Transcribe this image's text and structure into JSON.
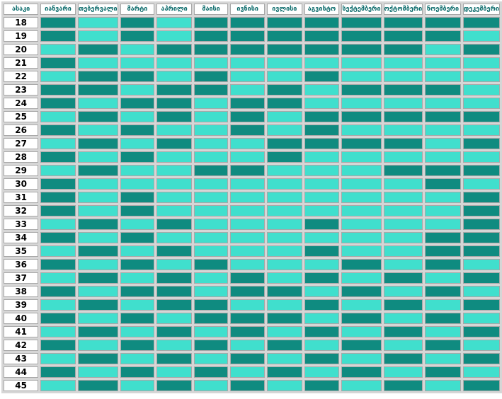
{
  "colors": {
    "dark": "#0f8b80",
    "light": "#40dfcd"
  },
  "header": {
    "age": "ასაკი",
    "months": [
      "იანვარი",
      "თებერვალი",
      "მარტი",
      "აპრილი",
      "მაისი",
      "ივნისი",
      "ივლისი",
      "აგვისტო",
      "სექტემბერი",
      "ოქტომბერი",
      "ნოემბერი",
      "დეკემბერი"
    ]
  },
  "rows": [
    {
      "age": "18",
      "cells": [
        1,
        0,
        1,
        0,
        1,
        1,
        1,
        1,
        1,
        1,
        1,
        1
      ]
    },
    {
      "age": "19",
      "cells": [
        1,
        0,
        1,
        0,
        1,
        1,
        1,
        1,
        1,
        1,
        1,
        0
      ]
    },
    {
      "age": "20",
      "cells": [
        0,
        1,
        0,
        1,
        1,
        1,
        1,
        1,
        1,
        1,
        0,
        1
      ]
    },
    {
      "age": "21",
      "cells": [
        1,
        0,
        0,
        0,
        0,
        0,
        0,
        0,
        0,
        0,
        0,
        0
      ]
    },
    {
      "age": "22",
      "cells": [
        0,
        1,
        1,
        0,
        1,
        0,
        0,
        1,
        0,
        0,
        0,
        0
      ]
    },
    {
      "age": "23",
      "cells": [
        1,
        1,
        0,
        1,
        1,
        0,
        1,
        0,
        1,
        1,
        1,
        0
      ]
    },
    {
      "age": "24",
      "cells": [
        1,
        0,
        1,
        1,
        0,
        1,
        1,
        0,
        0,
        0,
        0,
        0
      ]
    },
    {
      "age": "25",
      "cells": [
        0,
        1,
        0,
        1,
        0,
        1,
        0,
        1,
        1,
        1,
        1,
        1
      ]
    },
    {
      "age": "26",
      "cells": [
        1,
        0,
        1,
        0,
        0,
        1,
        0,
        1,
        0,
        0,
        0,
        0
      ]
    },
    {
      "age": "27",
      "cells": [
        0,
        1,
        0,
        1,
        0,
        0,
        1,
        1,
        1,
        1,
        0,
        1
      ]
    },
    {
      "age": "28",
      "cells": [
        1,
        0,
        1,
        0,
        0,
        0,
        1,
        0,
        0,
        0,
        0,
        0
      ]
    },
    {
      "age": "29",
      "cells": [
        0,
        1,
        0,
        0,
        1,
        1,
        0,
        0,
        0,
        1,
        1,
        1
      ]
    },
    {
      "age": "30",
      "cells": [
        1,
        0,
        0,
        0,
        0,
        0,
        0,
        0,
        0,
        0,
        1,
        0
      ]
    },
    {
      "age": "31",
      "cells": [
        1,
        0,
        1,
        0,
        0,
        0,
        0,
        0,
        0,
        0,
        0,
        1
      ]
    },
    {
      "age": "32",
      "cells": [
        1,
        0,
        1,
        0,
        0,
        0,
        0,
        0,
        0,
        0,
        0,
        1
      ]
    },
    {
      "age": "33",
      "cells": [
        0,
        1,
        0,
        1,
        0,
        0,
        0,
        1,
        0,
        0,
        0,
        1
      ]
    },
    {
      "age": "34",
      "cells": [
        1,
        0,
        1,
        0,
        0,
        0,
        0,
        0,
        0,
        0,
        1,
        1
      ]
    },
    {
      "age": "35",
      "cells": [
        0,
        1,
        0,
        1,
        0,
        0,
        0,
        1,
        0,
        0,
        1,
        1
      ]
    },
    {
      "age": "36",
      "cells": [
        1,
        0,
        1,
        0,
        1,
        0,
        0,
        0,
        1,
        0,
        1,
        0
      ]
    },
    {
      "age": "37",
      "cells": [
        0,
        1,
        0,
        1,
        0,
        1,
        0,
        1,
        0,
        1,
        0,
        1
      ]
    },
    {
      "age": "38",
      "cells": [
        1,
        0,
        1,
        1,
        0,
        1,
        1,
        0,
        1,
        0,
        1,
        0
      ]
    },
    {
      "age": "39",
      "cells": [
        0,
        1,
        0,
        1,
        1,
        0,
        0,
        1,
        0,
        1,
        0,
        1
      ]
    },
    {
      "age": "40",
      "cells": [
        1,
        0,
        1,
        0,
        1,
        1,
        1,
        0,
        1,
        0,
        1,
        0
      ]
    },
    {
      "age": "41",
      "cells": [
        0,
        1,
        0,
        1,
        0,
        1,
        0,
        1,
        0,
        1,
        0,
        1
      ]
    },
    {
      "age": "42",
      "cells": [
        1,
        0,
        1,
        0,
        1,
        0,
        1,
        0,
        1,
        0,
        1,
        0
      ]
    },
    {
      "age": "43",
      "cells": [
        0,
        1,
        0,
        1,
        0,
        1,
        0,
        1,
        0,
        1,
        0,
        1
      ]
    },
    {
      "age": "44",
      "cells": [
        1,
        0,
        1,
        0,
        1,
        0,
        1,
        0,
        1,
        0,
        1,
        0
      ]
    },
    {
      "age": "45",
      "cells": [
        0,
        1,
        0,
        1,
        0,
        1,
        0,
        1,
        0,
        1,
        0,
        1
      ]
    }
  ]
}
